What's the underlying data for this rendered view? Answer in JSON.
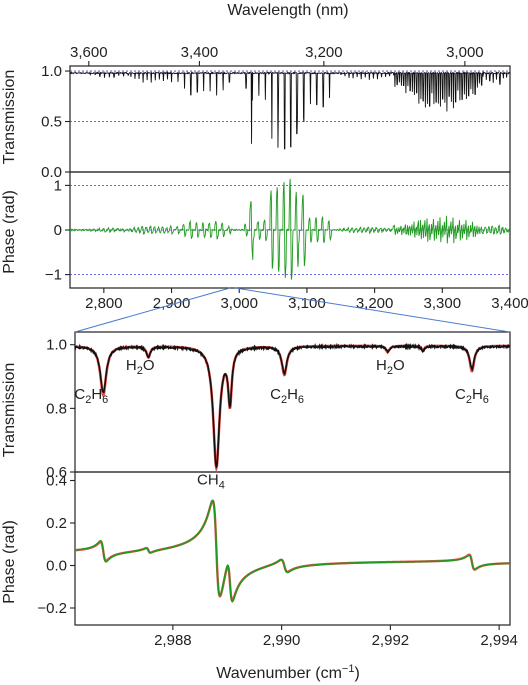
{
  "colors": {
    "black_series": "#111111",
    "red_series": "#e8504a",
    "green_series": "#1f9a1f",
    "reference_lines": "#3a3ad0",
    "zoom_lines": "#4a7bd0"
  },
  "chart_data": [
    {
      "type": "line",
      "panel": "top-transmission",
      "top_axis": {
        "label": "Wavelength (nm)",
        "ticks": [
          "3,600",
          "3,400",
          "3,200",
          "3,000"
        ],
        "tick_values": [
          3600,
          3400,
          3200,
          3000
        ]
      },
      "ylabel": "Transmission",
      "y_ticks": [
        "0.0",
        "0.5",
        "1.0"
      ],
      "ylim": [
        0.0,
        1.05
      ],
      "xlim": [
        2750,
        3400
      ],
      "reference_lines": [
        0.5,
        1.0
      ],
      "series": [
        {
          "color": "#111111",
          "baseline": 0.98,
          "absorption_bands": [
            {
              "x0": 2780,
              "x1": 2840,
              "spacing": 7,
              "depth": 0.05
            },
            {
              "x0": 2840,
              "x1": 2900,
              "spacing": 6,
              "depth": 0.12
            },
            {
              "x0": 2900,
              "x1": 2990,
              "spacing": 9.5,
              "depth": 0.28
            },
            {
              "x0": 3010,
              "x1": 3140,
              "spacing": 9.5,
              "depth": 0.6
            },
            {
              "x0": 3150,
              "x1": 3230,
              "spacing": 6,
              "depth": 0.08
            },
            {
              "x0": 3230,
              "x1": 3360,
              "spacing": 3.2,
              "depth": 0.4
            },
            {
              "x0": 3360,
              "x1": 3400,
              "spacing": 5,
              "depth": 0.12
            }
          ],
          "strong_lines": [
            [
              3018,
              0.7
            ],
            [
              3048,
              0.65
            ],
            [
              3057,
              0.74
            ],
            [
              3067,
              0.75
            ],
            [
              3076,
              0.73
            ],
            [
              3085,
              0.6
            ],
            [
              3095,
              0.45
            ]
          ]
        }
      ]
    },
    {
      "type": "line",
      "panel": "top-phase",
      "ylabel": "Phase (rad)",
      "y_ticks": [
        "−1",
        "0",
        "1"
      ],
      "ylim": [
        -1.3,
        1.3
      ],
      "xlim": [
        2750,
        3400
      ],
      "x_ticks": [
        "2,800",
        "2,900",
        "3,000",
        "3,100",
        "3,200",
        "3,300",
        "3,400"
      ],
      "x_tick_values": [
        2800,
        2900,
        3000,
        3100,
        3200,
        3300,
        3400
      ],
      "reference_lines": [
        -1,
        0,
        1
      ],
      "zoom_region": [
        2986.2,
        2994.2
      ],
      "series": [
        {
          "color": "#1f9a1f"
        }
      ]
    },
    {
      "type": "line",
      "panel": "bottom-transmission",
      "ylabel": "Transmission",
      "y_ticks": [
        "0.6",
        "0.8",
        "1.0"
      ],
      "ylim": [
        0.6,
        1.04
      ],
      "xlim": [
        2986.2,
        2994.2
      ],
      "annotations": [
        {
          "label": "C2H6",
          "base": "C",
          "sub1": "2",
          "mid": "H",
          "sub2": "6",
          "x": 2986.5,
          "y": 0.83
        },
        {
          "label": "H2O",
          "base": "H",
          "sub1": "2",
          "mid": "O",
          "sub2": "",
          "x": 2987.4,
          "y": 0.92
        },
        {
          "label": "CH4",
          "base": "CH",
          "sub1": "4",
          "mid": "",
          "sub2": "",
          "x": 2988.7,
          "y": 0.56
        },
        {
          "label": "C2H6",
          "base": "C",
          "sub1": "2",
          "mid": "H",
          "sub2": "6",
          "x": 2990.1,
          "y": 0.83
        },
        {
          "label": "H2O",
          "base": "H",
          "sub1": "2",
          "mid": "O",
          "sub2": "",
          "x": 2992.0,
          "y": 0.92
        },
        {
          "label": "C2H6",
          "base": "C",
          "sub1": "2",
          "mid": "H",
          "sub2": "6",
          "x": 2993.5,
          "y": 0.83
        }
      ],
      "series": [
        {
          "color": "#e8504a",
          "baseline": 0.997,
          "lines": [
            [
              2986.72,
              0.155,
              0.065
            ],
            [
              2987.55,
              0.035,
              0.04
            ],
            [
              2988.8,
              0.38,
              0.07
            ],
            [
              2989.05,
              0.17,
              0.04
            ],
            [
              2990.05,
              0.09,
              0.055
            ],
            [
              2991.95,
              0.02,
              0.04
            ],
            [
              2992.6,
              0.015,
              0.03
            ],
            [
              2993.5,
              0.08,
              0.05
            ]
          ]
        },
        {
          "color": "#111111",
          "baseline": 0.995,
          "lines": [
            [
              2986.72,
              0.145,
              0.065
            ],
            [
              2987.55,
              0.035,
              0.04
            ],
            [
              2988.8,
              0.375,
              0.07
            ],
            [
              2989.05,
              0.165,
              0.04
            ],
            [
              2990.05,
              0.085,
              0.055
            ],
            [
              2991.95,
              0.015,
              0.04
            ],
            [
              2992.6,
              0.015,
              0.03
            ],
            [
              2993.5,
              0.07,
              0.05
            ]
          ]
        }
      ]
    },
    {
      "type": "line",
      "panel": "bottom-phase",
      "ylabel": "Phase (rad)",
      "y_ticks": [
        "−0.2",
        "0.0",
        "0.2",
        "0.4"
      ],
      "ylim": [
        -0.28,
        0.44
      ],
      "xlim": [
        2986.2,
        2994.2
      ],
      "x_ticks": [
        "2,988",
        "2,990",
        "2,992",
        "2,994"
      ],
      "x_tick_values": [
        2988,
        2990,
        2992,
        2994
      ],
      "xlabel": "Wavenumber (cm",
      "xlabel_sup": "−1",
      "xlabel_end": ")",
      "series": [
        {
          "color": "#e8504a",
          "lines": [
            [
              2986.72,
              0.045,
              0.05
            ],
            [
              2987.55,
              0.012,
              0.04
            ],
            [
              2988.8,
              0.235,
              0.07
            ],
            [
              2989.05,
              0.1,
              0.05
            ],
            [
              2990.05,
              0.03,
              0.06
            ],
            [
              2993.5,
              0.035,
              0.05
            ]
          ]
        },
        {
          "color": "#1f9a1f",
          "lines": [
            [
              2986.72,
              0.05,
              0.05
            ],
            [
              2987.55,
              0.012,
              0.04
            ],
            [
              2988.8,
              0.235,
              0.07
            ],
            [
              2989.05,
              0.105,
              0.05
            ],
            [
              2990.05,
              0.032,
              0.06
            ],
            [
              2993.5,
              0.032,
              0.05
            ]
          ]
        }
      ]
    }
  ]
}
